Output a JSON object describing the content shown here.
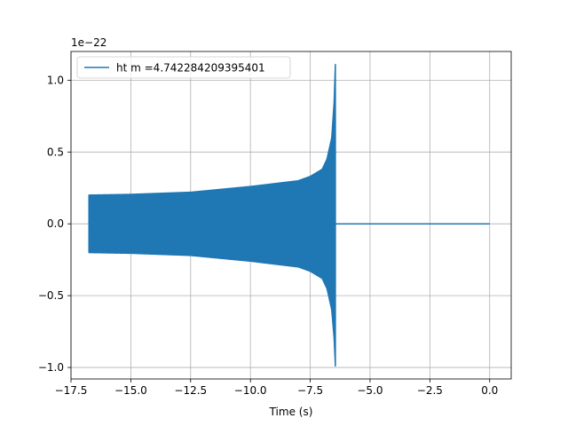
{
  "chart_data": {
    "type": "line",
    "title": "",
    "xlabel": "Time (s)",
    "ylabel": "",
    "y_offset_label": "1e−22",
    "xlim": [
      -17.5,
      0.9
    ],
    "ylim": [
      -1.08,
      1.2
    ],
    "grid": true,
    "legend_position": "top-left",
    "x_ticks": [
      -17.5,
      -15.0,
      -12.5,
      -10.0,
      -7.5,
      -5.0,
      -2.5,
      0.0
    ],
    "x_tick_labels": [
      "−17.5",
      "−15.0",
      "−12.5",
      "−10.0",
      "−7.5",
      "−5.0",
      "−2.5",
      "0.0"
    ],
    "y_ticks": [
      -1.0,
      -0.5,
      0.0,
      0.5,
      1.0
    ],
    "y_tick_labels": [
      "−1.0",
      "−0.5",
      "0.0",
      "0.5",
      "1.0"
    ],
    "series": [
      {
        "name": "ht m =4.742284209395401",
        "color": "#1f77b4",
        "envelope": {
          "x": [
            -16.75,
            -15.0,
            -12.5,
            -10.0,
            -8.0,
            -7.5,
            -7.0,
            -6.8,
            -6.6,
            -6.5,
            -6.45
          ],
          "upper": [
            0.2,
            0.205,
            0.22,
            0.26,
            0.3,
            0.33,
            0.38,
            0.45,
            0.6,
            0.85,
            1.11
          ],
          "lower": [
            -0.2,
            -0.205,
            -0.22,
            -0.26,
            -0.3,
            -0.33,
            -0.38,
            -0.45,
            -0.6,
            -0.8,
            -0.99
          ]
        },
        "flat": {
          "x": [
            -6.45,
            0.0
          ],
          "y": [
            0.0,
            0.0
          ]
        }
      }
    ]
  }
}
